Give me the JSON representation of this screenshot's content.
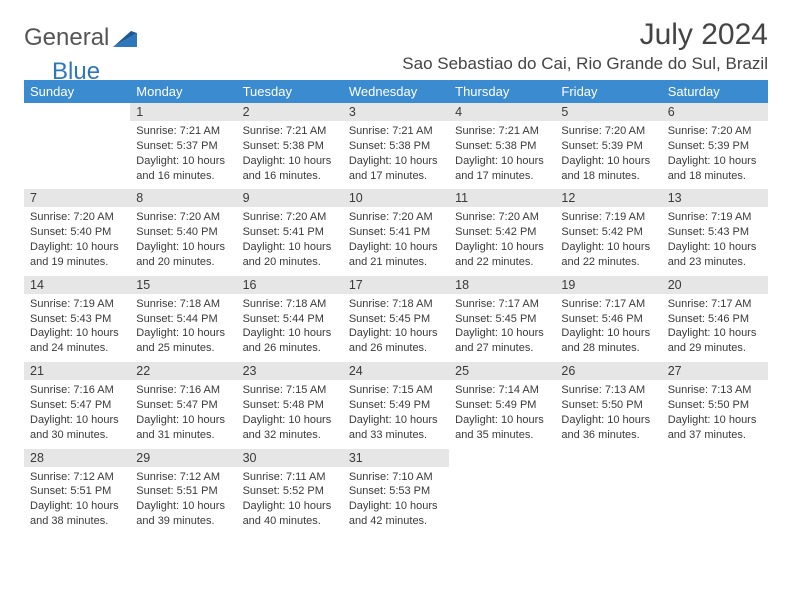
{
  "brand": {
    "part1": "General",
    "part2": "Blue"
  },
  "title": "July 2024",
  "location": "Sao Sebastiao do Cai, Rio Grande do Sul, Brazil",
  "colors": {
    "header_bg": "#3b8bd0",
    "header_text": "#ffffff",
    "daynum_bg": "#e6e6e6",
    "text": "#3a3a3a",
    "brand_blue": "#2f77bc",
    "page_bg": "#ffffff"
  },
  "typography": {
    "title_fontsize": 30,
    "location_fontsize": 17,
    "dayhead_fontsize": 13,
    "body_fontsize": 11
  },
  "days_of_week": [
    "Sunday",
    "Monday",
    "Tuesday",
    "Wednesday",
    "Thursday",
    "Friday",
    "Saturday"
  ],
  "weeks": [
    [
      null,
      {
        "n": "1",
        "sunrise": "7:21 AM",
        "sunset": "5:37 PM",
        "daylight": "10 hours and 16 minutes."
      },
      {
        "n": "2",
        "sunrise": "7:21 AM",
        "sunset": "5:38 PM",
        "daylight": "10 hours and 16 minutes."
      },
      {
        "n": "3",
        "sunrise": "7:21 AM",
        "sunset": "5:38 PM",
        "daylight": "10 hours and 17 minutes."
      },
      {
        "n": "4",
        "sunrise": "7:21 AM",
        "sunset": "5:38 PM",
        "daylight": "10 hours and 17 minutes."
      },
      {
        "n": "5",
        "sunrise": "7:20 AM",
        "sunset": "5:39 PM",
        "daylight": "10 hours and 18 minutes."
      },
      {
        "n": "6",
        "sunrise": "7:20 AM",
        "sunset": "5:39 PM",
        "daylight": "10 hours and 18 minutes."
      }
    ],
    [
      {
        "n": "7",
        "sunrise": "7:20 AM",
        "sunset": "5:40 PM",
        "daylight": "10 hours and 19 minutes."
      },
      {
        "n": "8",
        "sunrise": "7:20 AM",
        "sunset": "5:40 PM",
        "daylight": "10 hours and 20 minutes."
      },
      {
        "n": "9",
        "sunrise": "7:20 AM",
        "sunset": "5:41 PM",
        "daylight": "10 hours and 20 minutes."
      },
      {
        "n": "10",
        "sunrise": "7:20 AM",
        "sunset": "5:41 PM",
        "daylight": "10 hours and 21 minutes."
      },
      {
        "n": "11",
        "sunrise": "7:20 AM",
        "sunset": "5:42 PM",
        "daylight": "10 hours and 22 minutes."
      },
      {
        "n": "12",
        "sunrise": "7:19 AM",
        "sunset": "5:42 PM",
        "daylight": "10 hours and 22 minutes."
      },
      {
        "n": "13",
        "sunrise": "7:19 AM",
        "sunset": "5:43 PM",
        "daylight": "10 hours and 23 minutes."
      }
    ],
    [
      {
        "n": "14",
        "sunrise": "7:19 AM",
        "sunset": "5:43 PM",
        "daylight": "10 hours and 24 minutes."
      },
      {
        "n": "15",
        "sunrise": "7:18 AM",
        "sunset": "5:44 PM",
        "daylight": "10 hours and 25 minutes."
      },
      {
        "n": "16",
        "sunrise": "7:18 AM",
        "sunset": "5:44 PM",
        "daylight": "10 hours and 26 minutes."
      },
      {
        "n": "17",
        "sunrise": "7:18 AM",
        "sunset": "5:45 PM",
        "daylight": "10 hours and 26 minutes."
      },
      {
        "n": "18",
        "sunrise": "7:17 AM",
        "sunset": "5:45 PM",
        "daylight": "10 hours and 27 minutes."
      },
      {
        "n": "19",
        "sunrise": "7:17 AM",
        "sunset": "5:46 PM",
        "daylight": "10 hours and 28 minutes."
      },
      {
        "n": "20",
        "sunrise": "7:17 AM",
        "sunset": "5:46 PM",
        "daylight": "10 hours and 29 minutes."
      }
    ],
    [
      {
        "n": "21",
        "sunrise": "7:16 AM",
        "sunset": "5:47 PM",
        "daylight": "10 hours and 30 minutes."
      },
      {
        "n": "22",
        "sunrise": "7:16 AM",
        "sunset": "5:47 PM",
        "daylight": "10 hours and 31 minutes."
      },
      {
        "n": "23",
        "sunrise": "7:15 AM",
        "sunset": "5:48 PM",
        "daylight": "10 hours and 32 minutes."
      },
      {
        "n": "24",
        "sunrise": "7:15 AM",
        "sunset": "5:49 PM",
        "daylight": "10 hours and 33 minutes."
      },
      {
        "n": "25",
        "sunrise": "7:14 AM",
        "sunset": "5:49 PM",
        "daylight": "10 hours and 35 minutes."
      },
      {
        "n": "26",
        "sunrise": "7:13 AM",
        "sunset": "5:50 PM",
        "daylight": "10 hours and 36 minutes."
      },
      {
        "n": "27",
        "sunrise": "7:13 AM",
        "sunset": "5:50 PM",
        "daylight": "10 hours and 37 minutes."
      }
    ],
    [
      {
        "n": "28",
        "sunrise": "7:12 AM",
        "sunset": "5:51 PM",
        "daylight": "10 hours and 38 minutes."
      },
      {
        "n": "29",
        "sunrise": "7:12 AM",
        "sunset": "5:51 PM",
        "daylight": "10 hours and 39 minutes."
      },
      {
        "n": "30",
        "sunrise": "7:11 AM",
        "sunset": "5:52 PM",
        "daylight": "10 hours and 40 minutes."
      },
      {
        "n": "31",
        "sunrise": "7:10 AM",
        "sunset": "5:53 PM",
        "daylight": "10 hours and 42 minutes."
      },
      null,
      null,
      null
    ]
  ],
  "labels": {
    "sunrise": "Sunrise:",
    "sunset": "Sunset:",
    "daylight": "Daylight:"
  }
}
